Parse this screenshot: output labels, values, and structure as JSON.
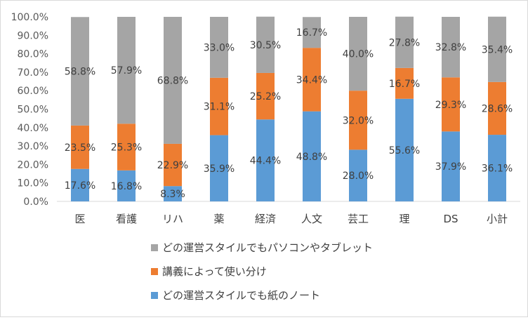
{
  "chart_data": {
    "type": "bar",
    "stacked": true,
    "percent": true,
    "categories": [
      "医",
      "看護",
      "リハ",
      "薬",
      "経済",
      "人文",
      "芸工",
      "理",
      "DS",
      "小計"
    ],
    "series": [
      {
        "name": "どの運営スタイルでも紙のノート",
        "color": "#5b9bd5",
        "values": [
          17.6,
          16.8,
          8.3,
          35.9,
          44.4,
          48.8,
          28.0,
          55.6,
          37.9,
          36.1
        ],
        "labels": [
          "17.6%",
          "16.8%",
          "8.3%",
          "35.9%",
          "44.4%",
          "48.8%",
          "28.0%",
          "55.6%",
          "37.9%",
          "36.1%"
        ]
      },
      {
        "name": "講義によって使い分け",
        "color": "#ed7d31",
        "values": [
          23.5,
          25.3,
          22.9,
          31.1,
          25.2,
          34.4,
          32.0,
          16.7,
          29.3,
          28.6
        ],
        "labels": [
          "23.5%",
          "25.3%",
          "22.9%",
          "31.1%",
          "25.2%",
          "34.4%",
          "32.0%",
          "16.7%",
          "29.3%",
          "28.6%"
        ]
      },
      {
        "name": "どの運営スタイルでもパソコンやタブレット",
        "color": "#a5a5a5",
        "values": [
          58.8,
          57.9,
          68.8,
          33.0,
          30.5,
          16.7,
          40.0,
          27.8,
          32.8,
          35.4
        ],
        "labels": [
          "58.8%",
          "57.9%",
          "68.8%",
          "33.0%",
          "30.5%",
          "16.7%",
          "40.0%",
          "27.8%",
          "32.8%",
          "35.4%"
        ]
      }
    ],
    "y_ticks": [
      "0.0%",
      "10.0%",
      "20.0%",
      "30.0%",
      "40.0%",
      "50.0%",
      "60.0%",
      "70.0%",
      "80.0%",
      "90.0%",
      "100.0%"
    ],
    "ylim": [
      0,
      100
    ],
    "grid": false,
    "legend_position": "bottom",
    "legend_order": [
      2,
      1,
      0
    ]
  }
}
